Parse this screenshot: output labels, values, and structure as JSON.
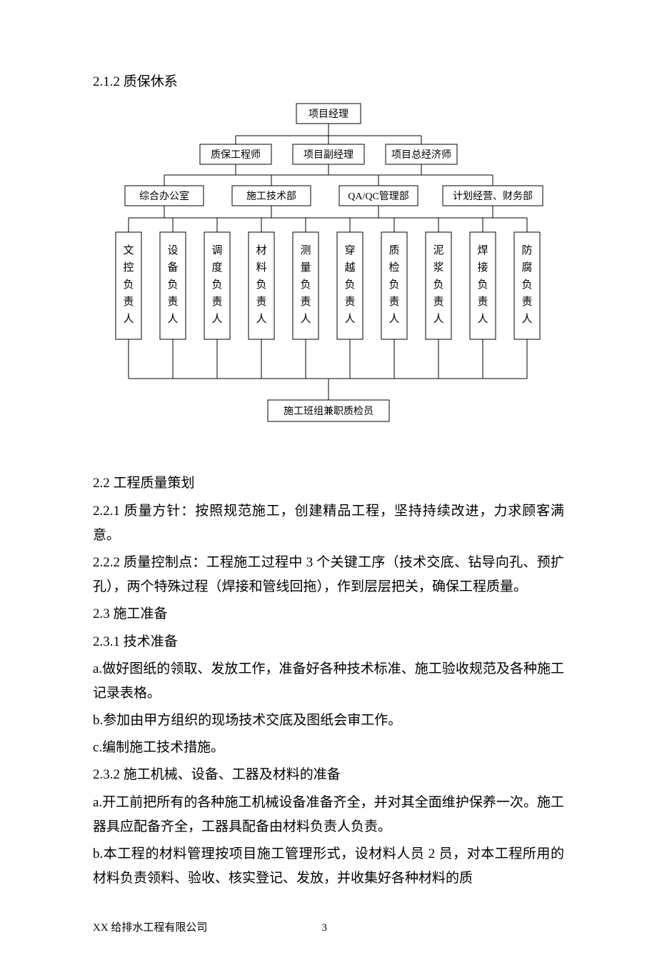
{
  "heading_212": "2.1.2 质保休系",
  "org": {
    "top": "项目经理",
    "level2": [
      "质保工程师",
      "项目副经理",
      "项目总经济师"
    ],
    "level3": [
      "综合办公室",
      "施工技术部",
      "QA/QC管理部",
      "计划经营、财务部"
    ],
    "level4": [
      "文控负责人",
      "设备负责人",
      "调度负责人",
      "材料负责人",
      "测量负责人",
      "穿越负责人",
      "质检负责人",
      "泥浆负责人",
      "焊接负责人",
      "防腐负责人"
    ],
    "bottom": "施工班组兼职质检员"
  },
  "body": {
    "p22": "2.2 工程质量策划",
    "p221": "2.2.1 质量方针：按照规范施工，创建精品工程，坚持持续改进，力求顾客满意。",
    "p222": "2.2.2 质量控制点：工程施工过程中 3 个关键工序（技术交底、钻导向孔、预扩孔），两个特殊过程（焊接和管线回拖），作到层层把关，确保工程质量。",
    "p23": "2.3 施工准备",
    "p231": "2.3.1 技术准备",
    "p231a": "a.做好图纸的领取、发放工作，准备好各种技术标准、施工验收规范及各种施工记录表格。",
    "p231b": "b.参加由甲方组织的现场技术交底及图纸会审工作。",
    "p231c": "c.编制施工技术措施。",
    "p232": "2.3.2 施工机械、设备、工器及材料的准备",
    "p232a": "a.开工前把所有的各种施工机械设备准备齐全，并对其全面维护保养一次。施工器具应配备齐全，工器具配备由材料负责人负责。",
    "p232b": "b.本工程的材料管理按项目施工管理形式，设材料人员 2 员，对本工程所用的材料负责领料、验收、核实登记、发放，并收集好各种材料的质"
  },
  "footer": {
    "company": "XX 给排水工程有限公司",
    "page": "3"
  },
  "style": {
    "box_stroke": "#000000",
    "box_fill": "#ffffff",
    "line_color": "#000000",
    "font_family": "SimSun",
    "font_size_box": 14,
    "font_size_vertical": 14
  }
}
